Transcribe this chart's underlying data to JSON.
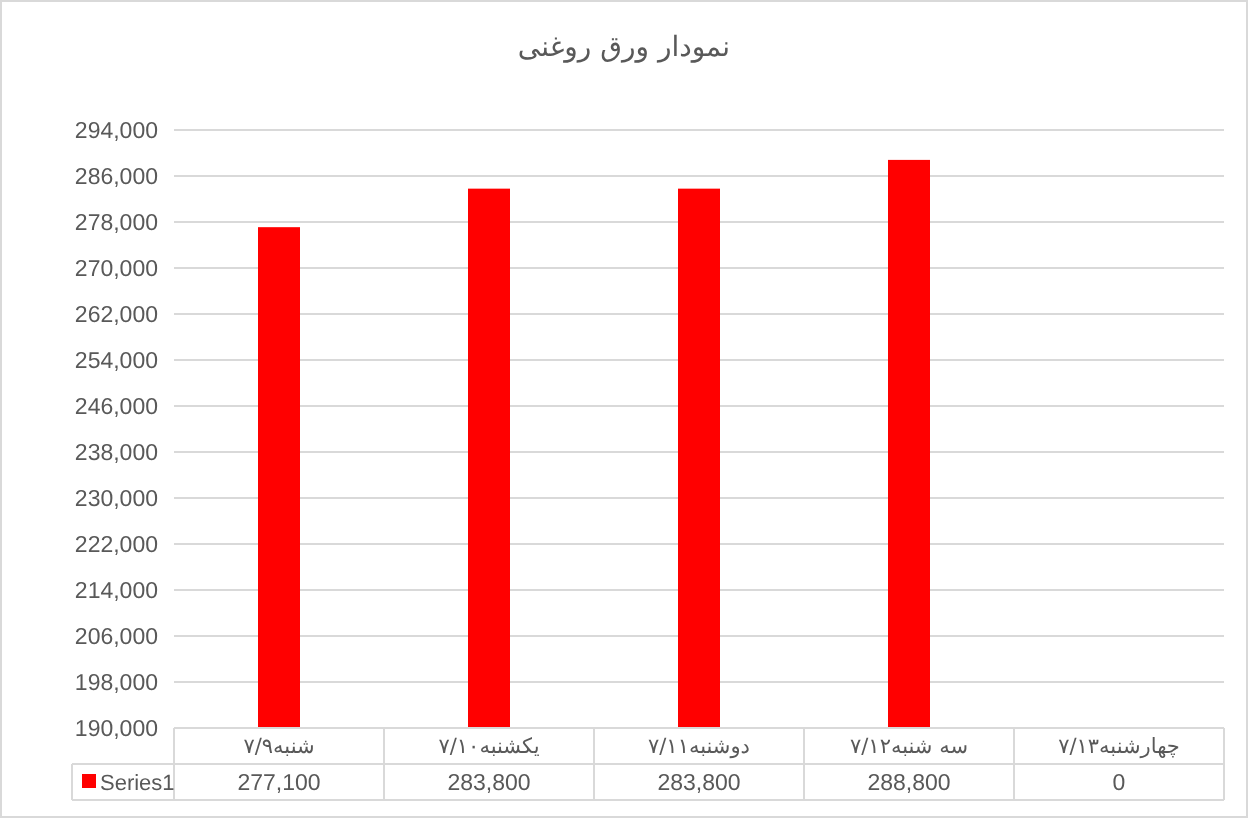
{
  "chart_data": {
    "type": "bar",
    "title": "نمودار ورق روغنی",
    "categories": [
      "شنبه۷/۹",
      "یکشنبه۷/۱۰",
      "دوشنبه۷/۱۱",
      "سه شنبه۷/۱۲",
      "چهارشنبه۷/۱۳"
    ],
    "series": [
      {
        "name": "Series1",
        "color": "#ff0000",
        "values": [
          277100,
          283800,
          283800,
          288800,
          null
        ],
        "value_labels": [
          "277,100",
          "283,800",
          "283,800",
          "288,800",
          "0"
        ]
      }
    ],
    "ylim": [
      190000,
      294000
    ],
    "yticks": [
      {
        "value": 190000,
        "label": "190,000"
      },
      {
        "value": 198000,
        "label": "198,000"
      },
      {
        "value": 206000,
        "label": "206,000"
      },
      {
        "value": 214000,
        "label": "214,000"
      },
      {
        "value": 222000,
        "label": "222,000"
      },
      {
        "value": 230000,
        "label": "230,000"
      },
      {
        "value": 238000,
        "label": "238,000"
      },
      {
        "value": 246000,
        "label": "246,000"
      },
      {
        "value": 254000,
        "label": "254,000"
      },
      {
        "value": 262000,
        "label": "262,000"
      },
      {
        "value": 270000,
        "label": "270,000"
      },
      {
        "value": 278000,
        "label": "278,000"
      },
      {
        "value": 286000,
        "label": "286,000"
      },
      {
        "value": 294000,
        "label": "294,000"
      }
    ],
    "grid": "y",
    "legend": "bottom"
  }
}
